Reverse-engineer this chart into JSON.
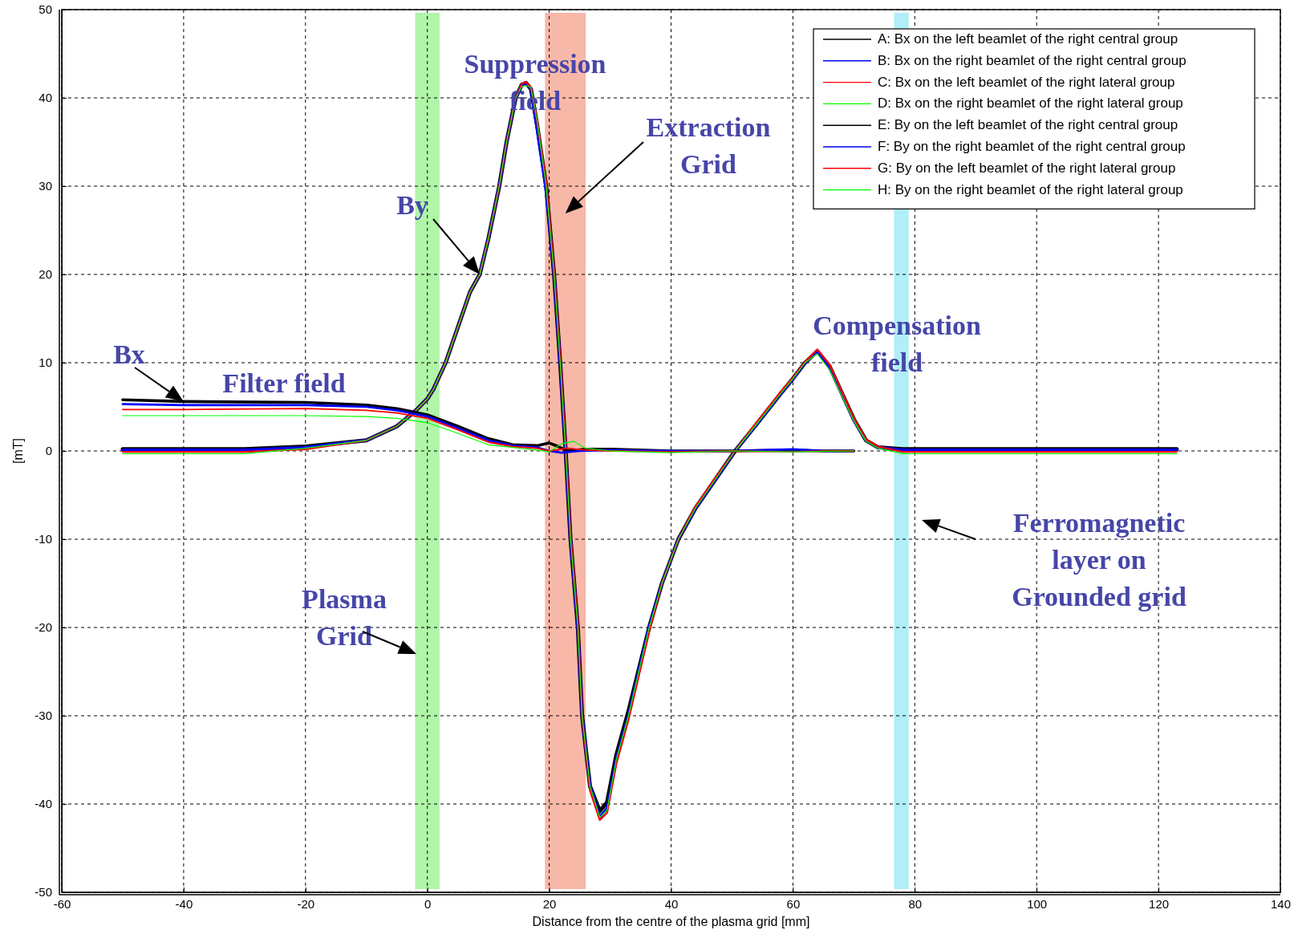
{
  "chart_data": {
    "type": "line",
    "xlabel": "Distance from the centre of the plasma grid [mm]",
    "ylabel": "[mT]",
    "xlim": [
      -60,
      140
    ],
    "xticks": [
      -60,
      -40,
      -20,
      0,
      20,
      40,
      60,
      80,
      100,
      120,
      140
    ],
    "ylim": [
      -50,
      50
    ],
    "yticks": [
      -50,
      -40,
      -30,
      -20,
      -10,
      0,
      10,
      20,
      30,
      40,
      50
    ],
    "grid": true,
    "legend": "top right",
    "series": [
      {
        "name": "A: Bx on the left beamlet of the right central group",
        "color": "#000000",
        "x": [
          -50,
          -40,
          -20,
          -10,
          -5,
          0,
          5,
          10,
          14,
          18,
          20,
          21.5,
          23,
          26,
          30,
          40,
          50,
          60,
          65,
          70
        ],
        "values": [
          5.8,
          5.6,
          5.5,
          5.2,
          4.8,
          4.1,
          2.8,
          1.4,
          0.7,
          0.6,
          0.9,
          0.5,
          0,
          0.2,
          0.2,
          0,
          0,
          0.1,
          0,
          0
        ]
      },
      {
        "name": "B: Bx on the right beamlet of the right central group",
        "color": "#0000ff",
        "x": [
          -50,
          -40,
          -20,
          -10,
          -5,
          0,
          5,
          10,
          14,
          18,
          20,
          22,
          25,
          30,
          40,
          50,
          60,
          65,
          70
        ],
        "values": [
          5.3,
          5.2,
          5.2,
          5,
          4.6,
          3.9,
          2.6,
          1.2,
          0.6,
          0.4,
          0,
          -0.2,
          0,
          0.1,
          0,
          0,
          0.2,
          0,
          0
        ]
      },
      {
        "name": "C: Bx on the left beamlet of the right lateral group",
        "color": "#ff0000",
        "x": [
          -50,
          -40,
          -20,
          -10,
          -5,
          0,
          5,
          10,
          14,
          18,
          20,
          23,
          26,
          30,
          40,
          50,
          60,
          65,
          70
        ],
        "values": [
          4.7,
          4.7,
          4.8,
          4.6,
          4.3,
          3.7,
          2.4,
          1,
          0.5,
          0.3,
          0,
          0.3,
          0.1,
          0,
          -0.1,
          0,
          -0.1,
          0,
          0
        ]
      },
      {
        "name": "D: Bx on the right beamlet of the right lateral group",
        "color": "#00ff00",
        "x": [
          -50,
          -40,
          -20,
          -10,
          -5,
          0,
          5,
          10,
          14,
          18,
          20,
          22,
          24,
          26,
          30,
          40,
          50,
          60,
          70
        ],
        "values": [
          4,
          4,
          4,
          3.9,
          3.7,
          3.2,
          2,
          0.7,
          0.4,
          0.1,
          -0.1,
          0.8,
          1.1,
          0.3,
          0,
          -0.2,
          0,
          -0.1,
          0
        ]
      },
      {
        "name": "E: By on the left beamlet of the right central group",
        "color": "#000000",
        "x": [
          -50,
          -30,
          -20,
          -10,
          -5,
          -2,
          0,
          1,
          3,
          5,
          7,
          8.6,
          10,
          11.8,
          13,
          14.5,
          15.5,
          16.2,
          17,
          18,
          19.5,
          20.8,
          21.8,
          22.7,
          23.5,
          24.7,
          25.4,
          26.7,
          28.3,
          29.5,
          31,
          33,
          36.4,
          38.5,
          41.2,
          44,
          47,
          50.5,
          54,
          58,
          60,
          62,
          64,
          66,
          68,
          70,
          72,
          74,
          78,
          123
        ],
        "values": [
          0.2,
          0.2,
          0.5,
          1.2,
          2.8,
          4.5,
          5.9,
          7,
          10,
          14,
          18,
          20,
          24,
          30,
          35,
          40,
          41.5,
          41.7,
          41,
          37,
          30,
          20,
          10,
          0,
          -10,
          -20,
          -30,
          -38,
          -40.8,
          -39.8,
          -34.5,
          -29.5,
          -20,
          -15,
          -10,
          -6.5,
          -3.5,
          0,
          3,
          6.5,
          8.2,
          10,
          11.3,
          9.6,
          6.6,
          3.6,
          1.2,
          0.4,
          0.2,
          0.2
        ]
      },
      {
        "name": "F: By on the right beamlet of the right central group",
        "color": "#0000ff",
        "x": [
          -50,
          -30,
          -20,
          -10,
          -5,
          -2,
          0,
          1,
          3,
          5,
          7,
          8.6,
          10,
          11.8,
          13,
          14.5,
          15.5,
          16.2,
          17,
          18,
          19.5,
          20.8,
          21.8,
          22.7,
          23.5,
          24.7,
          25.4,
          26.7,
          28.3,
          29.5,
          31,
          33,
          36.4,
          38.5,
          41.2,
          44,
          47,
          50.5,
          54,
          58,
          60,
          62,
          64,
          66,
          68,
          70,
          72,
          74,
          78,
          123
        ],
        "values": [
          0.1,
          0.1,
          0.4,
          1.2,
          2.8,
          4.5,
          5.9,
          7,
          10,
          14,
          18,
          20,
          24,
          30,
          35,
          40,
          41.5,
          41.7,
          41,
          36.5,
          29.5,
          20,
          10,
          0,
          -10,
          -20,
          -30,
          -38,
          -41.5,
          -40.5,
          -35,
          -30,
          -20,
          -15,
          -10,
          -6.5,
          -3.5,
          0,
          3,
          6.5,
          8.2,
          10,
          11.3,
          9.5,
          6.5,
          3.5,
          1.2,
          0.4,
          0.1,
          0.1
        ]
      },
      {
        "name": "G: By on the left beamlet of the right lateral group",
        "color": "#ff0000",
        "x": [
          -50,
          -30,
          -20,
          -10,
          -5,
          -2,
          0,
          1,
          3,
          5,
          7,
          8.6,
          10,
          11.8,
          13,
          14.5,
          15.5,
          16.2,
          17,
          18,
          19.5,
          20.8,
          21.8,
          22.7,
          23.5,
          24.7,
          25.4,
          26.7,
          28.3,
          29.5,
          31,
          33,
          36.4,
          38.5,
          41.2,
          44,
          47,
          50.5,
          54,
          58,
          60,
          62,
          64,
          66,
          68,
          70,
          72,
          74,
          78,
          123
        ],
        "values": [
          -0.1,
          -0.1,
          0.2,
          1.2,
          2.8,
          4.5,
          5.9,
          7,
          10,
          14,
          18,
          20,
          24,
          30,
          35,
          40,
          41.6,
          41.8,
          41.2,
          37.5,
          30.5,
          20.5,
          10.5,
          0.5,
          -9.5,
          -19.5,
          -30,
          -38.5,
          -41.8,
          -41,
          -35.5,
          -30.5,
          -20.5,
          -15,
          -10,
          -6.3,
          -3.3,
          0,
          3.2,
          6.7,
          8.3,
          10.1,
          11.5,
          9.8,
          6.8,
          3.7,
          1.3,
          0.5,
          -0.1,
          -0.1
        ]
      },
      {
        "name": "H: By on the right beamlet of the right lateral group",
        "color": "#00ff00",
        "x": [
          -50,
          -30,
          -20,
          -10,
          -5,
          -2,
          0,
          1,
          3,
          5,
          7,
          8.6,
          10,
          11.8,
          13,
          14.5,
          15.5,
          16.2,
          17,
          18,
          19.5,
          20.8,
          21.8,
          22.7,
          23.5,
          24.7,
          25.4,
          26.7,
          28.3,
          29.5,
          31,
          33,
          36.4,
          38.5,
          41.2,
          44,
          47,
          50.5,
          54,
          58,
          60,
          62,
          64,
          66,
          68,
          70,
          72,
          74,
          78,
          123
        ],
        "values": [
          -0.3,
          -0.3,
          0.3,
          1.2,
          2.8,
          4.5,
          5.9,
          7,
          10,
          14,
          18,
          20,
          24,
          30,
          35,
          40,
          41.3,
          41.4,
          41.2,
          37.5,
          30,
          20,
          10,
          0,
          -10,
          -20,
          -30,
          -38,
          -41.5,
          -40.7,
          -35,
          -30,
          -20,
          -15,
          -10,
          -6.5,
          -3.5,
          0,
          3,
          6.5,
          8.2,
          10,
          11,
          9.2,
          6.3,
          3.4,
          1.1,
          0.3,
          -0.3,
          -0.3
        ]
      }
    ],
    "bands": [
      {
        "axis": "x",
        "from": -2,
        "to": 2,
        "color": "#b0f5a8"
      },
      {
        "axis": "x",
        "from": 19.3,
        "to": 26,
        "color": "#f8b8a8",
        "label": "Extraction Grid"
      },
      {
        "axis": "x",
        "from": 76.6,
        "to": 79,
        "color": "#b0eef8"
      }
    ],
    "annotations": [
      "Suppression field",
      {
        "text": "By",
        "x": 8.6,
        "y": 20
      },
      {
        "text": "Bx",
        "x": -40,
        "y": 5.6
      },
      "Filter field",
      "Compensation field",
      "Plasma Grid",
      "Ferromagnetic layer on Grounded grid"
    ]
  }
}
